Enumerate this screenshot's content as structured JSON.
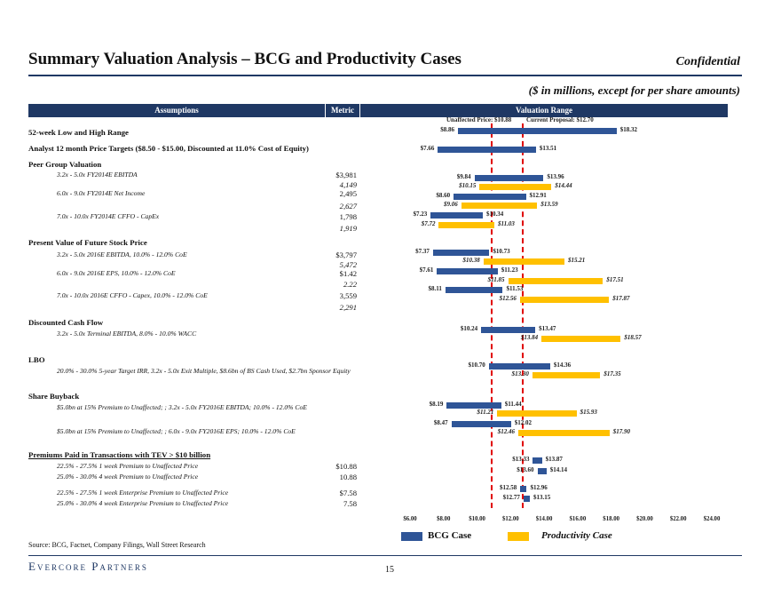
{
  "header": {
    "title": "Summary Valuation Analysis – BCG and Productivity Cases",
    "confidential": "Confidential",
    "subtitle": "($ in millions, except for per share amounts)"
  },
  "table_headers": {
    "assumptions": "Assumptions",
    "metric": "Metric",
    "range": "Valuation Range"
  },
  "sections": {
    "wk52": "52-week Low and High Range",
    "analyst": "Analyst 12 month Price Targets ($8.50 - $15.00, Discounted at 11.0% Cost of Equity)",
    "peer": "Peer Group Valuation",
    "pv": "Present Value of Future Stock Price",
    "dcf": "Discounted Cash Flow",
    "lbo": "LBO",
    "buyback": "Share Buyback",
    "premiums": "Premiums Paid in Transactions with TEV > $10 billion"
  },
  "subrows": {
    "peer1": "3.2x - 5.0x FY2014E EBITDA",
    "peer2": "6.0x - 9.0x FY2014E Net Income",
    "peer3": "7.0x - 10.0x FY2014E CFFO - CapEx",
    "pv1": "3.2x - 5.0x 2016E EBITDA, 10.0% - 12.0% CoE",
    "pv2": "6.0x - 9.0x 2016E EPS, 10.0% - 12.0% CoE",
    "pv3": "7.0x - 10.0x 2016E CFFO - Capex, 10.0% - 12.0% CoE",
    "dcf1": "3.2x - 5.0x Terminal EBITDA, 8.0% - 10.0% WACC",
    "lbo1": "20.0% - 30.0% 5-year Target IRR, 3.2x - 5.0x Exit Multiple, $8.6bn of BS Cash Used, $2.7bn Sponsor Equity",
    "bb1": "$5.0bn at 15% Premium to Unaffected; ; 3.2x - 5.0x FY2016E EBITDA; 10.0% - 12.0% CoE",
    "bb2": "$5.0bn at 15% Premium to Unaffected; ; 6.0x - 9.0x FY2016E EPS; 10.0% - 12.0% CoE",
    "pr1": "22.5% - 27.5% 1 week Premium to Unaffected Price",
    "pr2": "25.0% - 30.0% 4 week Premium to Unaffected Price",
    "pr3": "22.5% - 27.5% 1 week Enterprise Premium to Unaffected Price",
    "pr4": "25.0% - 30.0% 4 week Enterprise Premium to Unaffected Price"
  },
  "metrics": {
    "m1": "$3,981",
    "m2": "4,149",
    "m3": "2,495",
    "m4": "2,627",
    "m5": "1,798",
    "m6": "1,919",
    "m7": "$3,797",
    "m8": "5,472",
    "m9": "$1.42",
    "m10": "2.22",
    "m11": "3,559",
    "m12": "2,291",
    "m13": "$10.88",
    "m14": "10.88",
    "m15": "$7.58",
    "m16": "7.58"
  },
  "legend": {
    "bcg": "BCG Case",
    "prod": "Productivity Case"
  },
  "footer": {
    "source": "Source:  BCG, Factset, Company Filings, Wall Street Research",
    "logo": "Evercore Partners",
    "page": "15"
  },
  "chart_data": {
    "type": "bar",
    "orientation": "horizontal-floating",
    "title": "Valuation Range",
    "xlim": [
      6,
      24
    ],
    "tick_values": [
      6,
      8,
      10,
      12,
      14,
      16,
      18,
      20,
      22,
      24
    ],
    "tick_labels": [
      "$6.00",
      "$8.00",
      "$10.00",
      "$12.00",
      "$14.00",
      "$16.00",
      "$18.00",
      "$20.00",
      "$22.00",
      "$24.00"
    ],
    "reference_lines": [
      {
        "name": "unaffected",
        "label": "Unaffected Price: $10.88",
        "value": 10.88,
        "color": "#e00000"
      },
      {
        "name": "proposal",
        "label": "Current Proposal: $12.70",
        "value": 12.7,
        "color": "#e00000"
      }
    ],
    "series": [
      {
        "name": "BCG Case",
        "color": "#2f5597"
      },
      {
        "name": "Productivity Case",
        "color": "#ffc000"
      }
    ],
    "bars": [
      {
        "series": "BCG Case",
        "low": 8.86,
        "high": 18.32,
        "low_label": "$8.86",
        "high_label": "$18.32"
      },
      {
        "series": "BCG Case",
        "low": 7.66,
        "high": 13.51,
        "low_label": "$7.66",
        "high_label": "$13.51"
      },
      {
        "series": "BCG Case",
        "low": 9.84,
        "high": 13.96,
        "low_label": "$9.84",
        "high_label": "$13.96"
      },
      {
        "series": "Productivity Case",
        "low": 10.15,
        "high": 14.44,
        "low_label": "$10.15",
        "high_label": "$14.44"
      },
      {
        "series": "BCG Case",
        "low": 8.6,
        "high": 12.91,
        "low_label": "$8.60",
        "high_label": "$12.91"
      },
      {
        "series": "Productivity Case",
        "low": 9.06,
        "high": 13.59,
        "low_label": "$9.06",
        "high_label": "$13.59"
      },
      {
        "series": "BCG Case",
        "low": 7.23,
        "high": 10.34,
        "low_label": "$7.23",
        "high_label": "$10.34"
      },
      {
        "series": "Productivity Case",
        "low": 7.72,
        "high": 11.03,
        "low_label": "$7.72",
        "high_label": "$11.03"
      },
      {
        "series": "BCG Case",
        "low": 7.37,
        "high": 10.73,
        "low_label": "$7.37",
        "high_label": "$10.73"
      },
      {
        "series": "Productivity Case",
        "low": 10.38,
        "high": 15.21,
        "low_label": "$10.38",
        "high_label": "$15.21"
      },
      {
        "series": "BCG Case",
        "low": 7.61,
        "high": 11.23,
        "low_label": "$7.61",
        "high_label": "$11.23"
      },
      {
        "series": "Productivity Case",
        "low": 11.85,
        "high": 17.51,
        "low_label": "$11.85",
        "high_label": "$17.51"
      },
      {
        "series": "BCG Case",
        "low": 8.11,
        "high": 11.53,
        "low_label": "$8.11",
        "high_label": "$11.53"
      },
      {
        "series": "Productivity Case",
        "low": 12.56,
        "high": 17.87,
        "low_label": "$12.56",
        "high_label": "$17.87"
      },
      {
        "series": "BCG Case",
        "low": 10.24,
        "high": 13.47,
        "low_label": "$10.24",
        "high_label": "$13.47"
      },
      {
        "series": "Productivity Case",
        "low": 13.84,
        "high": 18.57,
        "low_label": "$13.84",
        "high_label": "$18.57"
      },
      {
        "series": "BCG Case",
        "low": 10.7,
        "high": 14.36,
        "low_label": "$10.70",
        "high_label": "$14.36"
      },
      {
        "series": "Productivity Case",
        "low": 13.3,
        "high": 17.35,
        "low_label": "$13.30",
        "high_label": "$17.35"
      },
      {
        "series": "BCG Case",
        "low": 8.19,
        "high": 11.44,
        "low_label": "$8.19",
        "high_label": "$11.44"
      },
      {
        "series": "Productivity Case",
        "low": 11.21,
        "high": 15.93,
        "low_label": "$11.21",
        "high_label": "$15.93"
      },
      {
        "series": "BCG Case",
        "low": 8.47,
        "high": 12.02,
        "low_label": "$8.47",
        "high_label": "$12.02"
      },
      {
        "series": "Productivity Case",
        "low": 12.46,
        "high": 17.9,
        "low_label": "$12.46",
        "high_label": "$17.90"
      },
      {
        "series": "BCG Case",
        "low": 13.33,
        "high": 13.87,
        "low_label": "$13.33",
        "high_label": "$13.87"
      },
      {
        "series": "BCG Case",
        "low": 13.6,
        "high": 14.14,
        "low_label": "$13.60",
        "high_label": "$14.14"
      },
      {
        "series": "BCG Case",
        "low": 12.58,
        "high": 12.96,
        "low_label": "$12.58",
        "high_label": "$12.96"
      },
      {
        "series": "BCG Case",
        "low": 12.77,
        "high": 13.15,
        "low_label": "$12.77",
        "high_label": "$13.15"
      }
    ]
  }
}
